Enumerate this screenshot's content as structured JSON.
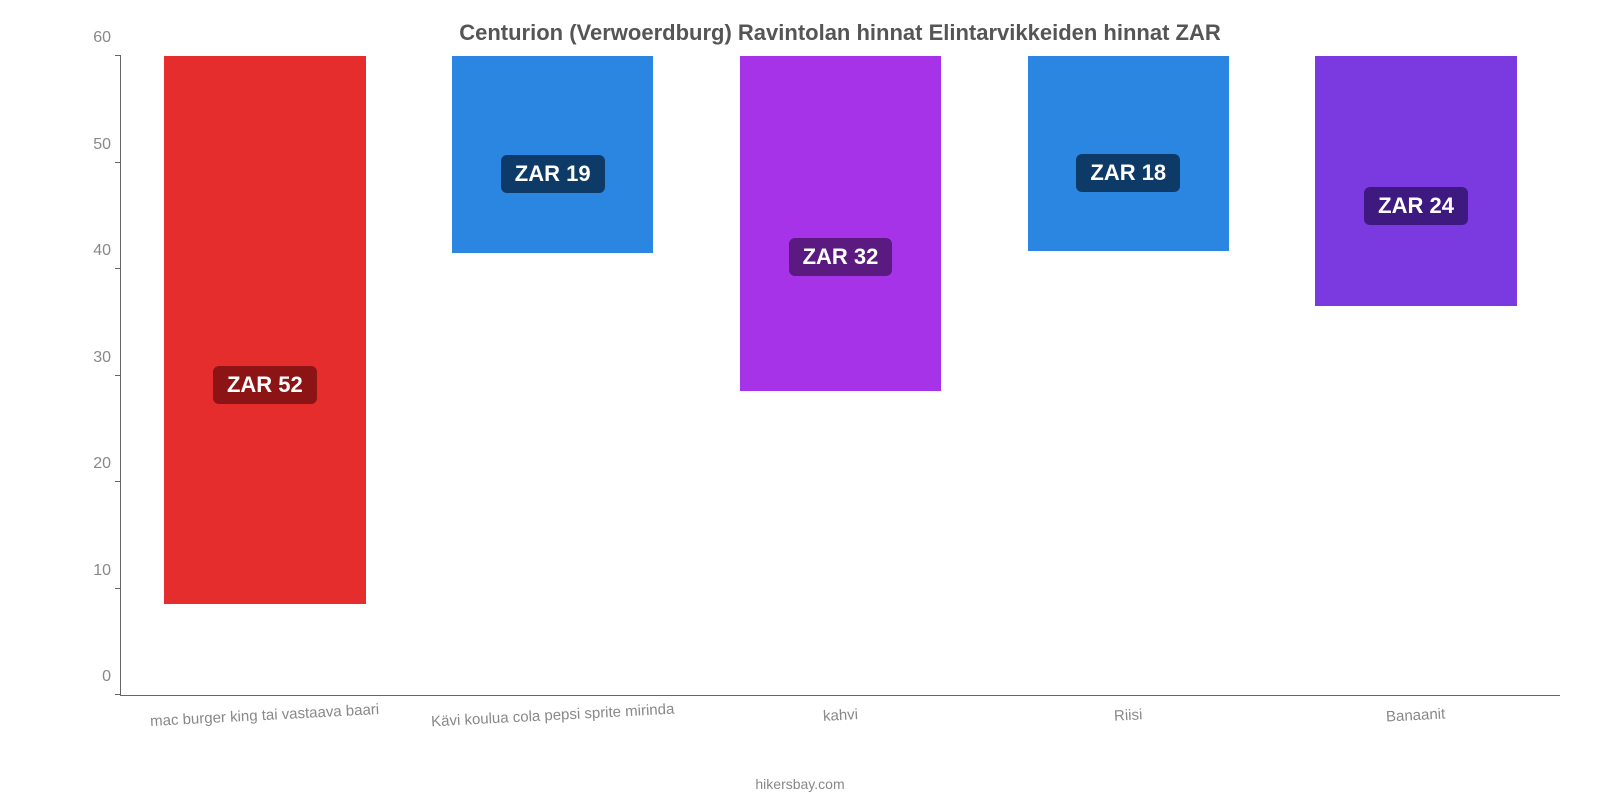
{
  "chart": {
    "type": "bar",
    "title": "Centurion (Verwoerdburg) Ravintolan hinnat Elintarvikkeiden hinnat ZAR",
    "title_fontsize": 22,
    "title_color": "#555555",
    "background_color": "#ffffff",
    "axis_color": "#666666",
    "ylim": [
      0,
      60
    ],
    "ytick_step": 10,
    "yticks": [
      0,
      10,
      20,
      30,
      40,
      50,
      60
    ],
    "ytick_fontsize": 16,
    "ytick_color": "#888888",
    "xlabel_fontsize": 15,
    "xlabel_color": "#888888",
    "xlabel_rotation_deg": -3,
    "bar_width_ratio": 0.7,
    "value_label_fontsize": 22,
    "value_label_text_color": "#ffffff",
    "categories": [
      "mac burger king tai vastaava baari",
      "Kävi koulua cola pepsi sprite mirinda",
      "kahvi",
      "Riisi",
      "Banaanit"
    ],
    "values": [
      52,
      19,
      32,
      18,
      24
    ],
    "bar_heights_axis": [
      51.5,
      18.5,
      31.5,
      18.3,
      23.5
    ],
    "value_labels": [
      "ZAR 52",
      "ZAR 19",
      "ZAR 32",
      "ZAR 18",
      "ZAR 24"
    ],
    "bar_colors": [
      "#e52d2d",
      "#2a86e0",
      "#a633e8",
      "#2a86e0",
      "#7a3ae0"
    ],
    "label_badge_colors": [
      "#8c1414",
      "#0d3a66",
      "#5a1a80",
      "#0d3a66",
      "#3e1a80"
    ],
    "credit": "hikersbay.com",
    "credit_color": "#888888",
    "credit_fontsize": 14
  }
}
